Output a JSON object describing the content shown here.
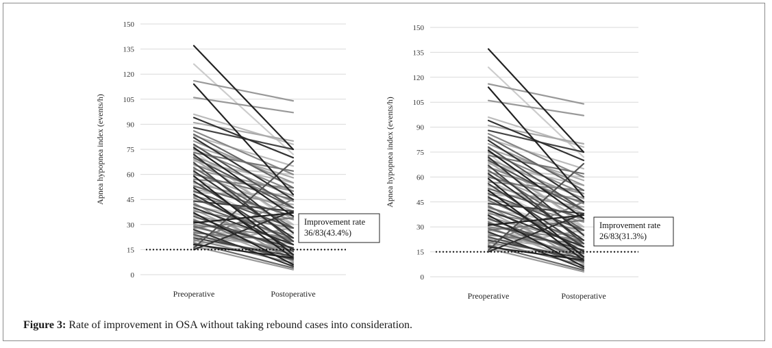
{
  "chart_data": [
    {
      "type": "line",
      "xlabel": "",
      "ylabel": "Apnea hypopnea index (events/h)",
      "categories": [
        "Preoperative",
        "Postoperative"
      ],
      "yticks": [
        "0",
        "15",
        "30",
        "45",
        "60",
        "75",
        "90",
        "105",
        "120",
        "135",
        "150"
      ],
      "ylim": [
        0,
        150
      ],
      "grid": true,
      "threshold": 15,
      "annotation": [
        "Improvement rate",
        "36/83(43.4%)"
      ],
      "series_pairs": [
        [
          137,
          75
        ],
        [
          126,
          72
        ],
        [
          116,
          104
        ],
        [
          114,
          48
        ],
        [
          106,
          97
        ],
        [
          96,
          78
        ],
        [
          94,
          70
        ],
        [
          91,
          80
        ],
        [
          88,
          75
        ],
        [
          86,
          60
        ],
        [
          84,
          52
        ],
        [
          83,
          65
        ],
        [
          82,
          45
        ],
        [
          80,
          55
        ],
        [
          78,
          40
        ],
        [
          77,
          58
        ],
        [
          76,
          35
        ],
        [
          75,
          50
        ],
        [
          74,
          30
        ],
        [
          73,
          62
        ],
        [
          72,
          25
        ],
        [
          71,
          47
        ],
        [
          70,
          40
        ],
        [
          69,
          33
        ],
        [
          68,
          55
        ],
        [
          67,
          20
        ],
        [
          66,
          44
        ],
        [
          65,
          60
        ],
        [
          64,
          28
        ],
        [
          63,
          50
        ],
        [
          62,
          22
        ],
        [
          61,
          38
        ],
        [
          60,
          45
        ],
        [
          59,
          12
        ],
        [
          58,
          30
        ],
        [
          57,
          52
        ],
        [
          56,
          18
        ],
        [
          55,
          40
        ],
        [
          54,
          25
        ],
        [
          53,
          35
        ],
        [
          52,
          10
        ],
        [
          51,
          42
        ],
        [
          50,
          28
        ],
        [
          49,
          48
        ],
        [
          48,
          15
        ],
        [
          47,
          33
        ],
        [
          46,
          20
        ],
        [
          45,
          26
        ],
        [
          44,
          38
        ],
        [
          43,
          8
        ],
        [
          42,
          22
        ],
        [
          41,
          30
        ],
        [
          40,
          18
        ],
        [
          39,
          12
        ],
        [
          38,
          28
        ],
        [
          37,
          6
        ],
        [
          36,
          20
        ],
        [
          35,
          14
        ],
        [
          34,
          24
        ],
        [
          33,
          10
        ],
        [
          32,
          16
        ],
        [
          31,
          37
        ],
        [
          30,
          8
        ],
        [
          30,
          22
        ],
        [
          29,
          12
        ],
        [
          28,
          18
        ],
        [
          27,
          5
        ],
        [
          26,
          14
        ],
        [
          25,
          20
        ],
        [
          24,
          9
        ],
        [
          23,
          16
        ],
        [
          22,
          11
        ],
        [
          21,
          7
        ],
        [
          20,
          13
        ],
        [
          19,
          4
        ],
        [
          18,
          10
        ],
        [
          17,
          3
        ],
        [
          16,
          68
        ],
        [
          16,
          15
        ],
        [
          15,
          38
        ],
        [
          18,
          28
        ],
        [
          28,
          34
        ],
        [
          20,
          45
        ]
      ],
      "series_shades": [
        "#222",
        "#ccc",
        "#999",
        "#222",
        "#999",
        "#bbb",
        "#333",
        "#aaa",
        "#444",
        "#888",
        "#666",
        "#bbb",
        "#333",
        "#999",
        "#555",
        "#aaa",
        "#222",
        "#888",
        "#ccc",
        "#777",
        "#333",
        "#999",
        "#555",
        "#aaa",
        "#bbb",
        "#444",
        "#888",
        "#ccc",
        "#666",
        "#999",
        "#333",
        "#aaa",
        "#777",
        "#222",
        "#bbb",
        "#888",
        "#444",
        "#999",
        "#ccc",
        "#666",
        "#222",
        "#aaa",
        "#555",
        "#bbb",
        "#333",
        "#888",
        "#777",
        "#ccc",
        "#444",
        "#999",
        "#666",
        "#bbb",
        "#333",
        "#aaa",
        "#888",
        "#222",
        "#999",
        "#555",
        "#ccc",
        "#777",
        "#444",
        "#222",
        "#aaa",
        "#888",
        "#666",
        "#bbb",
        "#333",
        "#999",
        "#777",
        "#555",
        "#aaa",
        "#444",
        "#888",
        "#ccc",
        "#666",
        "#222",
        "#999",
        "#555",
        "#bbb",
        "#333",
        "#aaa",
        "#777",
        "#888"
      ]
    },
    {
      "type": "line",
      "xlabel": "",
      "ylabel": "Apnea hypopnea index (events/h)",
      "categories": [
        "Preoperative",
        "Postoperative"
      ],
      "yticks": [
        "0",
        "15",
        "30",
        "45",
        "60",
        "75",
        "90",
        "105",
        "120",
        "135",
        "150"
      ],
      "ylim": [
        0,
        150
      ],
      "grid": true,
      "threshold": 15,
      "annotation": [
        "Improvement rate",
        "26/83(31.3%)"
      ],
      "series_pairs": [
        [
          137,
          75
        ],
        [
          126,
          72
        ],
        [
          116,
          104
        ],
        [
          114,
          48
        ],
        [
          106,
          97
        ],
        [
          96,
          78
        ],
        [
          94,
          70
        ],
        [
          91,
          80
        ],
        [
          88,
          75
        ],
        [
          86,
          60
        ],
        [
          84,
          52
        ],
        [
          83,
          65
        ],
        [
          82,
          45
        ],
        [
          80,
          55
        ],
        [
          78,
          40
        ],
        [
          77,
          58
        ],
        [
          76,
          35
        ],
        [
          75,
          50
        ],
        [
          74,
          30
        ],
        [
          73,
          62
        ],
        [
          72,
          25
        ],
        [
          71,
          47
        ],
        [
          70,
          40
        ],
        [
          69,
          33
        ],
        [
          68,
          55
        ],
        [
          67,
          20
        ],
        [
          66,
          44
        ],
        [
          65,
          60
        ],
        [
          64,
          28
        ],
        [
          63,
          50
        ],
        [
          62,
          22
        ],
        [
          61,
          38
        ],
        [
          60,
          45
        ],
        [
          59,
          12
        ],
        [
          58,
          30
        ],
        [
          57,
          52
        ],
        [
          56,
          18
        ],
        [
          55,
          40
        ],
        [
          54,
          25
        ],
        [
          53,
          35
        ],
        [
          52,
          10
        ],
        [
          51,
          42
        ],
        [
          50,
          28
        ],
        [
          49,
          48
        ],
        [
          48,
          15
        ],
        [
          47,
          33
        ],
        [
          46,
          20
        ],
        [
          45,
          26
        ],
        [
          44,
          38
        ],
        [
          43,
          8
        ],
        [
          42,
          22
        ],
        [
          41,
          30
        ],
        [
          40,
          18
        ],
        [
          39,
          12
        ],
        [
          38,
          28
        ],
        [
          37,
          6
        ],
        [
          36,
          20
        ],
        [
          35,
          14
        ],
        [
          34,
          24
        ],
        [
          33,
          10
        ],
        [
          32,
          16
        ],
        [
          31,
          37
        ],
        [
          30,
          8
        ],
        [
          30,
          22
        ],
        [
          29,
          12
        ],
        [
          28,
          18
        ],
        [
          27,
          5
        ],
        [
          26,
          14
        ],
        [
          25,
          20
        ],
        [
          24,
          9
        ],
        [
          23,
          16
        ],
        [
          22,
          11
        ],
        [
          21,
          7
        ],
        [
          20,
          13
        ],
        [
          19,
          4
        ],
        [
          18,
          10
        ],
        [
          17,
          3
        ],
        [
          16,
          68
        ],
        [
          16,
          15
        ],
        [
          15,
          38
        ],
        [
          18,
          28
        ],
        [
          28,
          34
        ],
        [
          20,
          45
        ]
      ],
      "series_shades": [
        "#222",
        "#ccc",
        "#999",
        "#222",
        "#999",
        "#bbb",
        "#333",
        "#aaa",
        "#444",
        "#888",
        "#666",
        "#bbb",
        "#333",
        "#999",
        "#555",
        "#aaa",
        "#222",
        "#888",
        "#ccc",
        "#777",
        "#333",
        "#999",
        "#555",
        "#aaa",
        "#bbb",
        "#444",
        "#888",
        "#ccc",
        "#666",
        "#999",
        "#333",
        "#aaa",
        "#777",
        "#222",
        "#bbb",
        "#888",
        "#444",
        "#999",
        "#ccc",
        "#666",
        "#222",
        "#aaa",
        "#555",
        "#bbb",
        "#333",
        "#888",
        "#777",
        "#ccc",
        "#444",
        "#999",
        "#666",
        "#bbb",
        "#333",
        "#aaa",
        "#888",
        "#222",
        "#999",
        "#555",
        "#ccc",
        "#777",
        "#444",
        "#222",
        "#aaa",
        "#888",
        "#666",
        "#bbb",
        "#333",
        "#999",
        "#777",
        "#555",
        "#aaa",
        "#444",
        "#888",
        "#ccc",
        "#666",
        "#222",
        "#999",
        "#555",
        "#bbb",
        "#333",
        "#aaa",
        "#777",
        "#888"
      ]
    }
  ],
  "caption": {
    "label": "Figure 3:",
    "text": " Rate of improvement in OSA without taking rebound cases into consideration."
  },
  "colors": {
    "grid": "#d9d9d9",
    "axis_text": "#333333",
    "threshold": "#111111"
  }
}
